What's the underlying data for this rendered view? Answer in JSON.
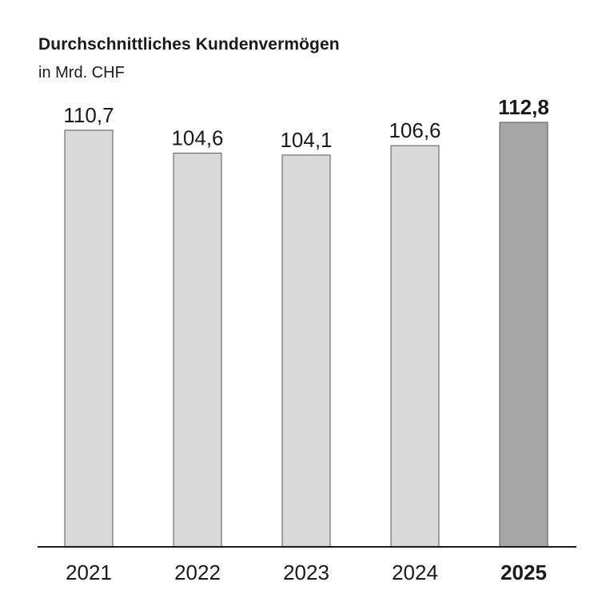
{
  "chart_data": {
    "type": "bar",
    "title": "Durchschnittliches Kundenvermögen",
    "subtitle": "in Mrd. CHF",
    "categories": [
      "2021",
      "2022",
      "2023",
      "2024",
      "2025"
    ],
    "value_labels": [
      "110,7",
      "104,6",
      "104,1",
      "106,6",
      "112,8"
    ],
    "values": [
      110.7,
      104.6,
      104.1,
      106.6,
      112.8
    ],
    "highlight_index": 4,
    "ylim": [
      0,
      112.8
    ],
    "grid": false,
    "legend": "none",
    "colors": {
      "bar": "#d9d9d9",
      "bar_highlight": "#a6a6a6",
      "bar_stroke": "#555555",
      "axis": "#1a1a1a"
    }
  }
}
